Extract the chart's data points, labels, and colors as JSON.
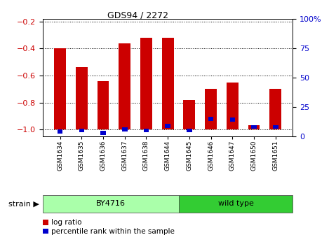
{
  "title": "GDS94 / 2272",
  "samples": [
    "GSM1634",
    "GSM1635",
    "GSM1636",
    "GSM1637",
    "GSM1638",
    "GSM1644",
    "GSM1645",
    "GSM1646",
    "GSM1647",
    "GSM1650",
    "GSM1651"
  ],
  "log_ratios": [
    -0.4,
    -0.54,
    -0.64,
    -0.36,
    -0.32,
    -0.32,
    -0.78,
    -0.7,
    -0.65,
    -0.97,
    -0.7
  ],
  "percentile_ranks": [
    4,
    5,
    3,
    6,
    5,
    9,
    5,
    15,
    14,
    8,
    8
  ],
  "bar_color": "#cc0000",
  "blue_color": "#0000cc",
  "ylim_left": [
    -1.05,
    -0.18
  ],
  "ylim_right": [
    0,
    100
  ],
  "yticks_left": [
    -1.0,
    -0.8,
    -0.6,
    -0.4,
    -0.2
  ],
  "yticks_right": [
    0,
    25,
    50,
    75,
    100
  ],
  "ylabel_left_color": "#cc0000",
  "ylabel_right_color": "#0000cc",
  "grid_color": "#000000",
  "strain_groups": [
    {
      "label": "BY4716",
      "start": 0,
      "end": 5,
      "color": "#aaffaa"
    },
    {
      "label": "wild type",
      "start": 6,
      "end": 10,
      "color": "#33cc33"
    }
  ],
  "strain_label": "strain",
  "legend_items": [
    {
      "label": "log ratio",
      "color": "#cc0000"
    },
    {
      "label": "percentile rank within the sample",
      "color": "#0000cc"
    }
  ],
  "bar_width": 0.55,
  "background_color": "#ffffff",
  "plot_bg_color": "#ffffff",
  "border_color": "#888888"
}
